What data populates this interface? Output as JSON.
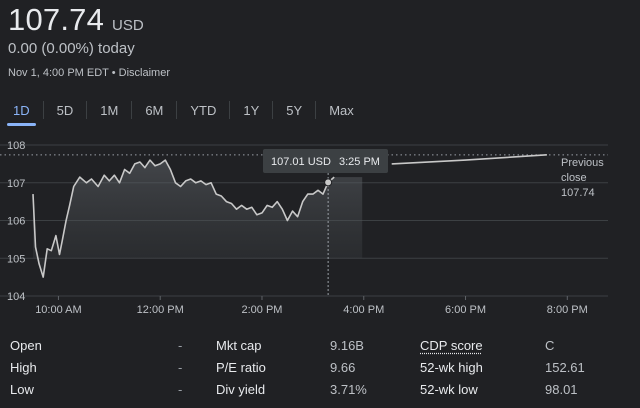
{
  "quote": {
    "price": "107.74",
    "currency": "USD",
    "change": "0.00 (0.00%) today",
    "timestamp": "Nov 1, 4:00 PM EDT",
    "separator": " • ",
    "disclaimer": "Disclaimer"
  },
  "tabs": [
    "1D",
    "5D",
    "1M",
    "6M",
    "YTD",
    "1Y",
    "5Y",
    "Max"
  ],
  "active_tab": "1D",
  "tooltip": {
    "price": "107.01 USD",
    "time": "3:25 PM"
  },
  "previous_close": {
    "line1": "Previous",
    "line2": "close",
    "value": "107.74"
  },
  "colors": {
    "accent": "#8ab4f8",
    "line": "#c8c8c8",
    "background": "#202124"
  },
  "stats": [
    {
      "label": "Open",
      "value": "-",
      "label2": "Mkt cap",
      "value2": "9.16B",
      "label3": "CDP score",
      "value3": "C"
    },
    {
      "label": "High",
      "value": "-",
      "label2": "P/E ratio",
      "value2": "9.66",
      "label3": "52-wk high",
      "value3": "152.61"
    },
    {
      "label": "Low",
      "value": "-",
      "label2": "Div yield",
      "value2": "3.71%",
      "label3": "52-wk low",
      "value3": "98.01"
    }
  ],
  "chart_data": {
    "type": "line",
    "y_ticks": [
      "108",
      "107",
      "106",
      "105",
      "104"
    ],
    "ylim": [
      104,
      108
    ],
    "x_ticks": [
      "10:00 AM",
      "12:00 PM",
      "2:00 PM",
      "4:00 PM",
      "6:00 PM",
      "8:00 PM"
    ],
    "x_tick_hours": [
      10,
      12,
      14,
      16,
      18,
      20
    ],
    "xlim_hours": [
      9.5,
      20.8
    ],
    "previous_close_value": 107.74,
    "series": [
      {
        "x_hours": [
          9.5,
          9.55,
          9.62,
          9.7,
          9.78,
          9.86,
          9.95,
          10.02,
          10.08,
          10.15,
          10.22,
          10.3,
          10.42,
          10.55,
          10.65,
          10.78,
          10.9,
          11.0,
          11.1,
          11.2,
          11.3,
          11.4,
          11.5,
          11.6,
          11.7,
          11.8,
          11.9,
          12.0,
          12.1,
          12.2,
          12.3,
          12.4,
          12.5,
          12.6,
          12.7,
          12.8,
          12.9,
          13.0,
          13.1,
          13.2,
          13.3,
          13.4,
          13.5,
          13.6,
          13.7,
          13.8,
          13.9,
          14.0,
          14.1,
          14.2,
          14.3,
          14.4,
          14.5,
          14.6,
          14.7,
          14.8,
          14.9,
          15.0,
          15.1,
          15.2,
          15.3,
          15.42
        ],
        "values": [
          106.7,
          105.3,
          104.85,
          104.5,
          105.25,
          105.2,
          105.6,
          105.1,
          105.5,
          106.0,
          106.4,
          106.9,
          107.15,
          107.0,
          107.1,
          106.9,
          107.2,
          107.05,
          107.2,
          107.0,
          107.35,
          107.25,
          107.5,
          107.55,
          107.4,
          107.6,
          107.45,
          107.5,
          107.6,
          107.35,
          107.0,
          106.9,
          107.05,
          107.1,
          107.0,
          107.05,
          106.95,
          107.0,
          106.7,
          106.65,
          106.5,
          106.45,
          106.3,
          106.4,
          106.3,
          106.35,
          106.15,
          106.2,
          106.4,
          106.35,
          106.5,
          106.3,
          106.0,
          106.25,
          106.1,
          106.5,
          106.7,
          106.7,
          106.8,
          106.7,
          107.01,
          107.15
        ]
      },
      {
        "x_hours": [
          16.55,
          18.0,
          19.6
        ],
        "values": [
          107.5,
          107.6,
          107.74
        ]
      }
    ]
  }
}
